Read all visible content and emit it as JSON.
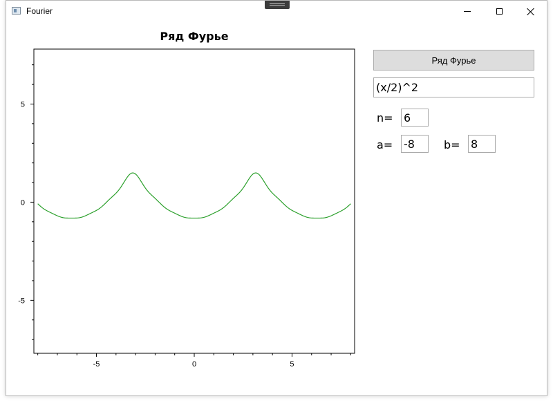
{
  "window": {
    "title": "Fourier",
    "icon": "window-app-icon"
  },
  "chart_data": {
    "type": "line",
    "title": "Ряд Фурье",
    "xlabel": "",
    "ylabel": "",
    "xlim": [
      -8.2,
      8.2
    ],
    "ylim": [
      -7.7,
      7.8
    ],
    "xticks": [
      -5,
      0,
      5
    ],
    "yticks": [
      -5,
      0,
      5
    ],
    "grid": false,
    "series": [
      {
        "color": "#2ca02c",
        "expression": "(x/2)^2",
        "terms": 6,
        "x_range": [
          -8,
          8
        ]
      }
    ]
  },
  "controls": {
    "button_label": "Ряд Фурье",
    "function_value": "(x/2)^2",
    "n_label": "n=",
    "n_value": "6",
    "a_label": "a=",
    "a_value": "-8",
    "b_label": "b=",
    "b_value": "8"
  },
  "colors": {
    "line": "#2ca02c",
    "button_bg": "#dddddd"
  }
}
